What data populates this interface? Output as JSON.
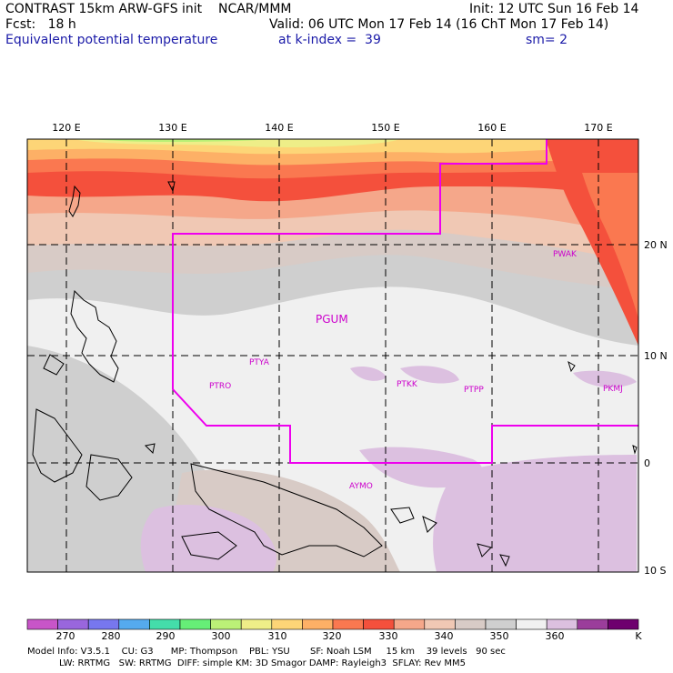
{
  "header": {
    "line1_left": "CONTRAST 15km ARW-GFS init    NCAR/MMM",
    "line1_right": "Init: 12 UTC Sun 16 Feb 14",
    "line2_left": "Fcst:   18 h",
    "line2_right": "Valid: 06 UTC Mon 17 Feb 14 (16 ChT Mon 17 Feb 14)",
    "line3_left": "Equivalent potential temperature",
    "line3_mid": "at k-index =  39",
    "line3_right": "sm= 2"
  },
  "map": {
    "lon_labels": [
      "120 E",
      "130 E",
      "140 E",
      "150 E",
      "160 E",
      "170 E"
    ],
    "lat_labels": [
      "20 N",
      "10 N",
      "0",
      "10 S"
    ],
    "stations": [
      {
        "id": "PWAK"
      },
      {
        "id": "PGUM"
      },
      {
        "id": "PTYA"
      },
      {
        "id": "PTRO"
      },
      {
        "id": "PTKK"
      },
      {
        "id": "PTPP"
      },
      {
        "id": "PKMJ"
      },
      {
        "id": "AYMO"
      }
    ]
  },
  "colorbar": {
    "labels": [
      "270",
      "280",
      "290",
      "300",
      "310",
      "320",
      "330",
      "340",
      "350",
      "360",
      "K"
    ],
    "colors": [
      "#c855c8",
      "#9966dd",
      "#7777ee",
      "#55aaee",
      "#44ddaa",
      "#66ee77",
      "#bbf077",
      "#eeee88",
      "#fdd577",
      "#fdb066",
      "#fa7850",
      "#f4503c",
      "#f5a78a",
      "#f0c8b4",
      "#d8cbc6",
      "#cfcfcf",
      "#f0f0f0",
      "#dcc0e0",
      "#9b3d9b",
      "#6e006e"
    ]
  },
  "footer": {
    "line1": "Model Info: V3.5.1    CU: G3      MP: Thompson    PBL: YSU       SF: Noah LSM     15 km    39 levels   90 sec",
    "line2": "           LW: RRTMG   SW: RRTMG  DIFF: simple KM: 3D Smagor DAMP: Rayleigh3  SFLAY: Rev MM5"
  }
}
